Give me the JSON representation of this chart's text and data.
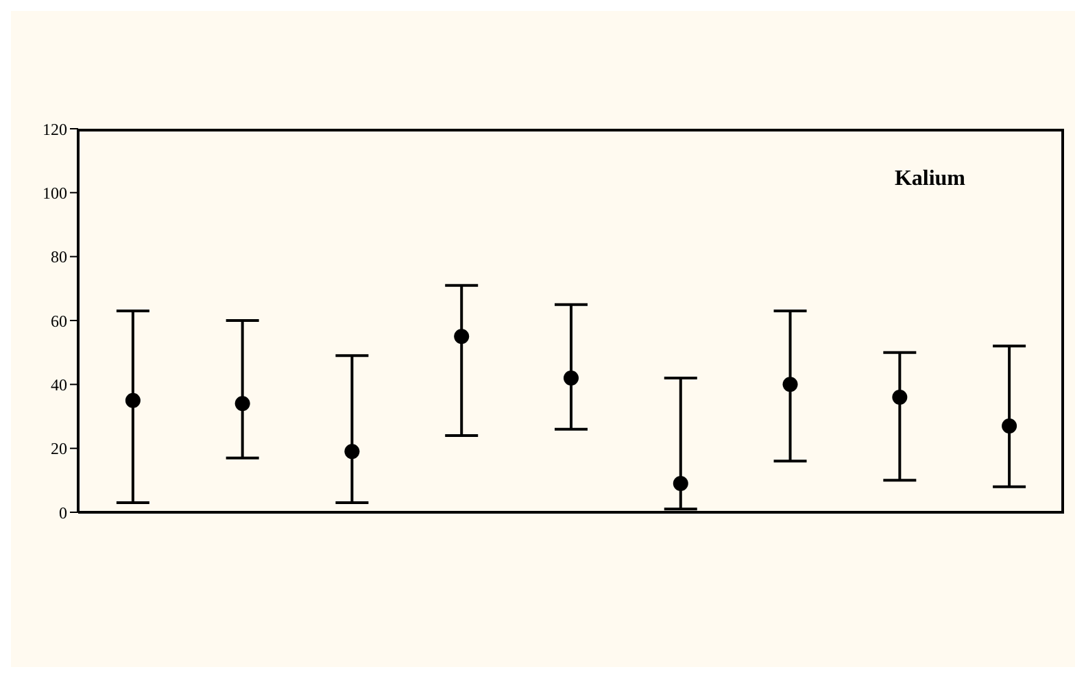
{
  "chart_data": {
    "type": "scatter",
    "title": "Kalium",
    "categories": [
      null,
      null,
      null,
      null,
      null,
      null,
      null,
      null,
      null
    ],
    "series": [
      {
        "color": "#000000",
        "values": [
          35,
          34,
          19,
          55,
          42,
          9,
          40,
          36,
          27
        ],
        "errors": [
          [
            3,
            63
          ],
          [
            17,
            60
          ],
          [
            3,
            49
          ],
          [
            24,
            71
          ],
          [
            26,
            65
          ],
          [
            1,
            42
          ],
          [
            16,
            63
          ],
          [
            10,
            50
          ],
          [
            8,
            52
          ]
        ]
      }
    ],
    "ylim": [
      0,
      120
    ],
    "yticks": [
      0,
      20,
      40,
      60,
      80,
      100,
      120
    ],
    "marker": "circle"
  }
}
